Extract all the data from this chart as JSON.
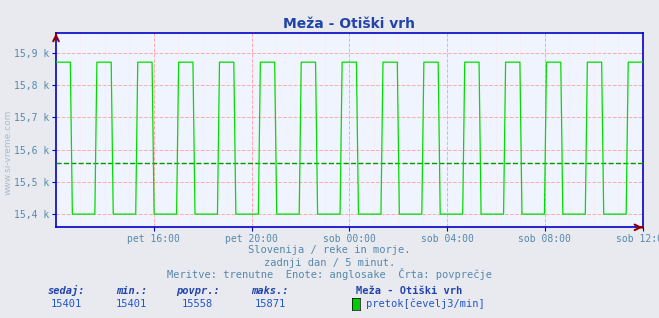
{
  "title": "Meža - Otiški vrh",
  "outer_bg_color": "#e8eaf0",
  "plot_bg_color": "#f0f4ff",
  "line_color": "#00dd00",
  "avg_line_color": "#009900",
  "axis_color": "#0000cc",
  "grid_color_v_major": "#ffaaaa",
  "grid_color_v_minor": "#ffdddd",
  "grid_color_h": "#ffaaaa",
  "y_min": 15360,
  "y_max": 15960,
  "y_ticks": [
    15400,
    15500,
    15600,
    15700,
    15800,
    15900
  ],
  "y_tick_labels": [
    "15,4 k",
    "15,5 k",
    "15,6 k",
    "15,7 k",
    "15,8 k",
    "15,9 k"
  ],
  "avg_value": 15558,
  "min_value": 15401,
  "max_value": 15871,
  "current_value": 15401,
  "x_tick_labels": [
    "pet 16:00",
    "pet 20:00",
    "sob 00:00",
    "sob 04:00",
    "sob 08:00",
    "sob 12:00"
  ],
  "subtitle1": "Slovenija / reke in morje.",
  "subtitle2": "zadnji dan / 5 minut.",
  "subtitle3": "Meritve: trenutne  Enote: anglosake  Črta: povprečje",
  "footer_label1": "sedaj:",
  "footer_label2": "min.:",
  "footer_label3": "povpr.:",
  "footer_label4": "maks.:",
  "footer_station": "Meža - Otiški vrh",
  "footer_series": "pretok[čevelj3/min]",
  "legend_color": "#00cc00",
  "text_color": "#5588aa",
  "title_color": "#2244aa",
  "footer_label_color": "#2244aa",
  "footer_value_color": "#2255cc",
  "watermark_color": "#aabbcc",
  "n_points": 288,
  "period_high": 8,
  "period_low": 12,
  "high_value": 15871,
  "low_value": 15401
}
